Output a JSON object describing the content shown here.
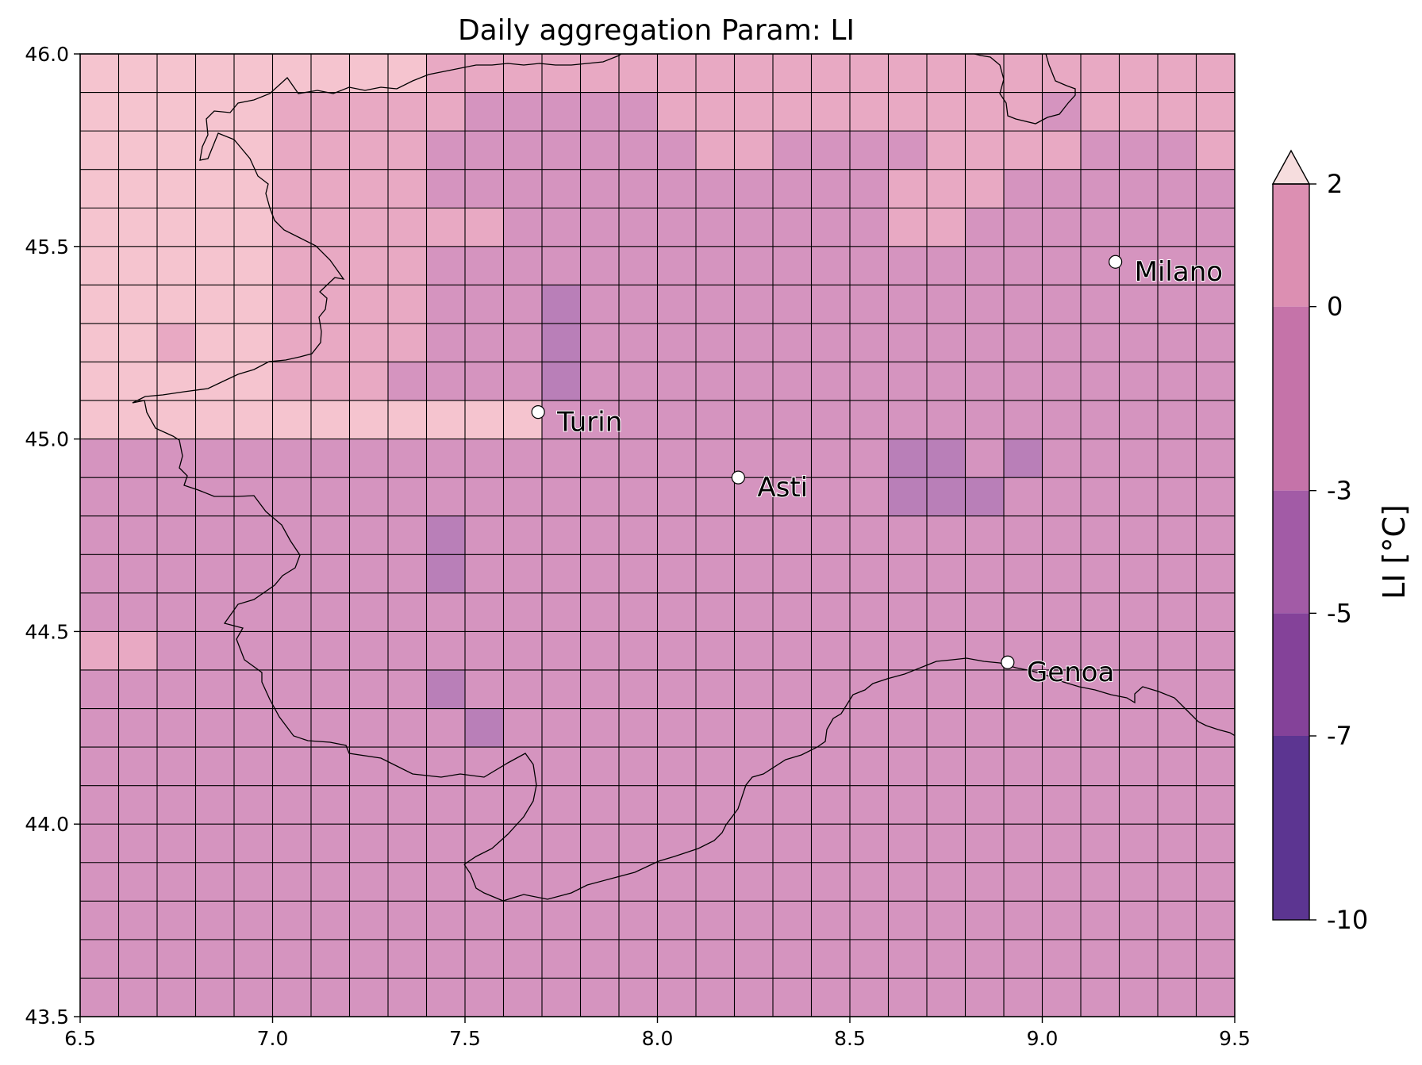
{
  "title": "Daily aggregation Param: LI",
  "chart_data": {
    "type": "heatmap",
    "title": "Daily aggregation Param: LI",
    "xlim": [
      6.5,
      9.5
    ],
    "ylim": [
      43.5,
      46.0
    ],
    "cell_size_deg": 0.1,
    "x_ticks": [
      6.5,
      7.0,
      7.5,
      8.0,
      8.5,
      9.0,
      9.5
    ],
    "x_tick_labels": [
      "6.5",
      "7.0",
      "7.5",
      "8.0",
      "8.5",
      "9.0",
      "9.5"
    ],
    "y_ticks": [
      43.5,
      44.0,
      44.5,
      45.0,
      45.5,
      46.0
    ],
    "y_tick_labels": [
      "43.5",
      "44.0",
      "44.5",
      "45.0",
      "45.5",
      "46.0"
    ],
    "grid": [
      [
        0,
        0,
        0,
        0,
        0,
        0,
        0,
        0,
        0,
        1,
        1,
        1,
        1,
        1,
        1,
        1,
        1,
        1,
        1,
        1,
        1,
        1,
        1,
        1,
        1,
        1,
        1,
        1,
        1,
        1
      ],
      [
        0,
        0,
        0,
        0,
        0,
        1,
        1,
        1,
        1,
        1,
        2,
        2,
        2,
        2,
        2,
        1,
        1,
        1,
        1,
        1,
        1,
        1,
        1,
        1,
        1,
        2,
        1,
        1,
        1,
        1
      ],
      [
        0,
        0,
        0,
        0,
        0,
        1,
        1,
        1,
        1,
        2,
        2,
        2,
        2,
        2,
        2,
        2,
        1,
        1,
        2,
        2,
        2,
        2,
        1,
        1,
        1,
        1,
        2,
        2,
        2,
        1
      ],
      [
        0,
        0,
        0,
        0,
        0,
        1,
        1,
        1,
        1,
        2,
        2,
        2,
        2,
        2,
        2,
        2,
        2,
        2,
        2,
        2,
        2,
        1,
        1,
        1,
        2,
        2,
        2,
        2,
        2,
        2
      ],
      [
        0,
        0,
        0,
        0,
        0,
        1,
        1,
        1,
        1,
        1,
        1,
        2,
        2,
        2,
        2,
        2,
        2,
        2,
        2,
        2,
        2,
        1,
        1,
        2,
        2,
        2,
        2,
        2,
        2,
        2
      ],
      [
        0,
        0,
        0,
        0,
        0,
        1,
        1,
        1,
        1,
        2,
        2,
        2,
        2,
        2,
        2,
        2,
        2,
        2,
        2,
        2,
        2,
        2,
        2,
        2,
        2,
        2,
        2,
        2,
        2,
        2
      ],
      [
        0,
        0,
        0,
        0,
        0,
        1,
        1,
        1,
        1,
        2,
        2,
        2,
        3,
        2,
        2,
        2,
        2,
        2,
        2,
        2,
        2,
        2,
        2,
        2,
        2,
        2,
        2,
        2,
        2,
        2
      ],
      [
        0,
        0,
        1,
        0,
        0,
        1,
        1,
        1,
        1,
        2,
        2,
        2,
        3,
        2,
        2,
        2,
        2,
        2,
        2,
        2,
        2,
        2,
        2,
        2,
        2,
        2,
        2,
        2,
        2,
        2
      ],
      [
        0,
        0,
        0,
        0,
        0,
        1,
        1,
        1,
        2,
        2,
        2,
        2,
        3,
        2,
        2,
        2,
        2,
        2,
        2,
        2,
        2,
        2,
        2,
        2,
        2,
        2,
        2,
        2,
        2,
        2
      ],
      [
        0,
        0,
        0,
        0,
        0,
        0,
        0,
        0,
        0,
        0,
        0,
        0,
        2,
        2,
        2,
        2,
        2,
        2,
        2,
        2,
        2,
        2,
        2,
        2,
        2,
        2,
        2,
        2,
        2,
        2
      ],
      [
        2,
        2,
        2,
        2,
        2,
        2,
        2,
        2,
        2,
        2,
        2,
        2,
        2,
        2,
        2,
        2,
        2,
        2,
        2,
        2,
        2,
        3,
        3,
        2,
        3,
        2,
        2,
        2,
        2,
        2
      ],
      [
        2,
        2,
        2,
        2,
        2,
        2,
        2,
        2,
        2,
        2,
        2,
        2,
        2,
        2,
        2,
        2,
        2,
        2,
        2,
        2,
        2,
        3,
        3,
        3,
        2,
        2,
        2,
        2,
        2,
        2
      ],
      [
        2,
        2,
        2,
        2,
        2,
        2,
        2,
        2,
        2,
        3,
        2,
        2,
        2,
        2,
        2,
        2,
        2,
        2,
        2,
        2,
        2,
        2,
        2,
        2,
        2,
        2,
        2,
        2,
        2,
        2
      ],
      [
        2,
        2,
        2,
        2,
        2,
        2,
        2,
        2,
        2,
        3,
        2,
        2,
        2,
        2,
        2,
        2,
        2,
        2,
        2,
        2,
        2,
        2,
        2,
        2,
        2,
        2,
        2,
        2,
        2,
        2
      ],
      [
        2,
        2,
        2,
        2,
        2,
        2,
        2,
        2,
        2,
        2,
        2,
        2,
        2,
        2,
        2,
        2,
        2,
        2,
        2,
        2,
        2,
        2,
        2,
        2,
        2,
        2,
        2,
        2,
        2,
        2
      ],
      [
        1,
        1,
        2,
        2,
        2,
        2,
        2,
        2,
        2,
        2,
        2,
        2,
        2,
        2,
        2,
        2,
        2,
        2,
        2,
        2,
        2,
        2,
        2,
        2,
        2,
        2,
        2,
        2,
        2,
        2
      ],
      [
        2,
        2,
        2,
        2,
        2,
        2,
        2,
        2,
        2,
        3,
        2,
        2,
        2,
        2,
        2,
        2,
        2,
        2,
        2,
        2,
        2,
        2,
        2,
        2,
        2,
        2,
        2,
        2,
        2,
        2
      ],
      [
        2,
        2,
        2,
        2,
        2,
        2,
        2,
        2,
        2,
        2,
        3,
        2,
        2,
        2,
        2,
        2,
        2,
        2,
        2,
        2,
        2,
        2,
        2,
        2,
        2,
        2,
        2,
        2,
        2,
        2
      ],
      [
        2,
        2,
        2,
        2,
        2,
        2,
        2,
        2,
        2,
        2,
        2,
        2,
        2,
        2,
        2,
        2,
        2,
        2,
        2,
        2,
        2,
        2,
        2,
        2,
        2,
        2,
        2,
        2,
        2,
        2
      ],
      [
        2,
        2,
        2,
        2,
        2,
        2,
        2,
        2,
        2,
        2,
        2,
        2,
        2,
        2,
        2,
        2,
        2,
        2,
        2,
        2,
        2,
        2,
        2,
        2,
        2,
        2,
        2,
        2,
        2,
        2
      ],
      [
        2,
        2,
        2,
        2,
        2,
        2,
        2,
        2,
        2,
        2,
        2,
        2,
        2,
        2,
        2,
        2,
        2,
        2,
        2,
        2,
        2,
        2,
        2,
        2,
        2,
        2,
        2,
        2,
        2,
        2
      ],
      [
        2,
        2,
        2,
        2,
        2,
        2,
        2,
        2,
        2,
        2,
        2,
        2,
        2,
        2,
        2,
        2,
        2,
        2,
        2,
        2,
        2,
        2,
        2,
        2,
        2,
        2,
        2,
        2,
        2,
        2
      ],
      [
        2,
        2,
        2,
        2,
        2,
        2,
        2,
        2,
        2,
        2,
        2,
        2,
        2,
        2,
        2,
        2,
        2,
        2,
        2,
        2,
        2,
        2,
        2,
        2,
        2,
        2,
        2,
        2,
        2,
        2
      ],
      [
        2,
        2,
        2,
        2,
        2,
        2,
        2,
        2,
        2,
        2,
        2,
        2,
        2,
        2,
        2,
        2,
        2,
        2,
        2,
        2,
        2,
        2,
        2,
        2,
        2,
        2,
        2,
        2,
        2,
        2
      ],
      [
        2,
        2,
        2,
        2,
        2,
        2,
        2,
        2,
        2,
        2,
        2,
        2,
        2,
        2,
        2,
        2,
        2,
        2,
        2,
        2,
        2,
        2,
        2,
        2,
        2,
        2,
        2,
        2,
        2,
        2
      ]
    ],
    "value_legend": "0 = above 2, 1 = 0 to 2, 2 = -3 to 0, 3 = -5 to -3; rows listed from north (46.0) to south (43.5), columns west (6.5) to east (9.5)",
    "grid_rows": [
      "111111111011111111122222222212222222222222012002222222222222222222",
      "000011111111012222222221111111111111111111111011000111122",
      "000000111111111222222222221111111111112222222222222222222",
      "0000001111111222222222222222222222222222211122222222222",
      "000000111111100222222222222222222222222221112222222222222",
      "0000001111112222222222222222222222222222222222222222222",
      "0000001222122223222222222222222222222222222222222222222",
      "0001011222122223222222222222222222222222222222222222222",
      "0000002222122223222222222222222222222222222222222222222",
      "0000000000222222222222222222222222222222222222222222222",
      "222222222222222222222222222222222222222222222222222222222"
    ],
    "color_legend": {
      "label": "LI [°C]",
      "ticks": [
        "2",
        "0",
        "-3",
        "-5",
        "-7",
        "-10"
      ],
      "bands": [
        {
          "from": 0,
          "to": 2,
          "color": "#dc8fb2"
        },
        {
          "from": -3,
          "to": 0,
          "color": "#c573a9"
        },
        {
          "from": -5,
          "to": -3,
          "color": "#a25ba6"
        },
        {
          "from": -7,
          "to": -5,
          "color": "#844299"
        },
        {
          "from": -10,
          "to": -7,
          "color": "#5c3591"
        }
      ],
      "extend_color": "#f6ddde"
    },
    "cell_colors": [
      "#f5c4cf",
      "#e8a9c3",
      "#d594bf",
      "#b97fb8"
    ],
    "cities": [
      {
        "name": "Turin",
        "lon": 7.69,
        "lat": 45.07
      },
      {
        "name": "Asti",
        "lon": 8.21,
        "lat": 44.9
      },
      {
        "name": "Milano",
        "lon": 9.19,
        "lat": 45.46
      },
      {
        "name": "Genoa",
        "lon": 8.91,
        "lat": 44.42
      }
    ]
  }
}
